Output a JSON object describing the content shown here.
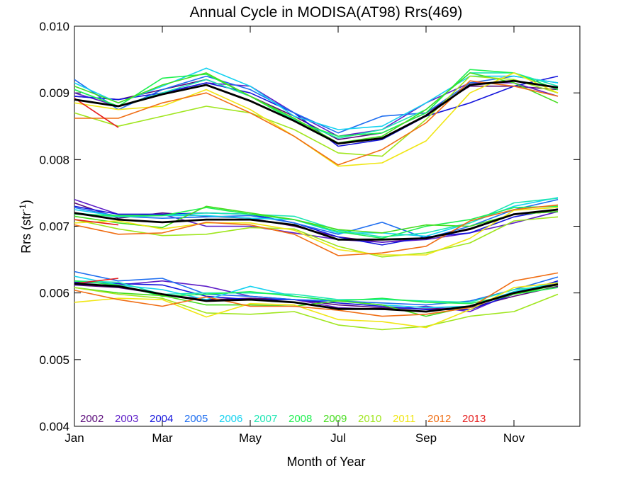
{
  "chart_data": {
    "type": "line",
    "title": "Annual Cycle in MODISA(AT98) Rrs(469)",
    "xlabel": "Month of Year",
    "ylabel": {
      "main": "Rrs (str",
      "sup": "-1",
      "end": ")"
    },
    "ylim": [
      0.004,
      0.01
    ],
    "xlim": [
      1,
      12.5
    ],
    "x_ticks": [
      {
        "x": 1,
        "label": "Jan"
      },
      {
        "x": 3,
        "label": "Mar"
      },
      {
        "x": 5,
        "label": "May"
      },
      {
        "x": 7,
        "label": "Jul"
      },
      {
        "x": 9,
        "label": "Sep"
      },
      {
        "x": 11,
        "label": "Nov"
      }
    ],
    "y_ticks": [
      {
        "y": 0.004,
        "label": "0.004"
      },
      {
        "y": 0.005,
        "label": "0.005"
      },
      {
        "y": 0.006,
        "label": "0.006"
      },
      {
        "y": 0.007,
        "label": "0.007"
      },
      {
        "y": 0.008,
        "label": "0.008"
      },
      {
        "y": 0.009,
        "label": "0.009"
      },
      {
        "y": 0.01,
        "label": "0.010"
      }
    ],
    "legend_position": "bottom-left",
    "x": [
      1,
      2,
      3,
      4,
      5,
      6,
      7,
      8,
      9,
      10,
      11,
      12
    ],
    "series": [
      {
        "name": "2002",
        "color": "#5a0a7a",
        "groups": [
          [
            0.00895,
            0.0089,
            0.00905,
            0.0092,
            0.00895,
            0.00865,
            0.0083,
            0.0084,
            0.0087,
            0.0091,
            0.0091,
            0.00905
          ],
          [
            0.00735,
            0.00712,
            0.0072,
            0.00715,
            0.00712,
            0.007,
            0.00684,
            0.00676,
            0.00682,
            0.00695,
            0.00718,
            0.00722
          ],
          [
            0.00612,
            0.00608,
            0.00598,
            0.0059,
            0.00592,
            0.0059,
            0.00582,
            0.00578,
            0.00576,
            0.00578,
            0.00595,
            0.0061
          ]
        ]
      },
      {
        "name": "2003",
        "color": "#5e1ec8",
        "groups": [
          [
            0.009,
            0.0088,
            0.009,
            0.00915,
            0.0091,
            0.0087,
            0.00835,
            0.00845,
            0.00885,
            0.00915,
            0.00915,
            0.00895
          ],
          [
            0.0074,
            0.00718,
            0.00718,
            0.007,
            0.007,
            0.0069,
            0.0068,
            0.00676,
            0.0068,
            0.0069,
            0.00705,
            0.00722
          ],
          [
            0.00612,
            0.00612,
            0.00618,
            0.0061,
            0.00595,
            0.0059,
            0.00578,
            0.00575,
            0.0058,
            0.00572,
            0.006,
            0.00616
          ]
        ]
      },
      {
        "name": "2004",
        "color": "#1414dc",
        "groups": [
          [
            0.00895,
            0.0089,
            0.009,
            0.00915,
            0.009,
            0.0087,
            0.0082,
            0.0083,
            0.00865,
            0.00885,
            0.0091,
            0.00925
          ],
          [
            0.0073,
            0.00718,
            0.00718,
            0.0072,
            0.00718,
            0.00705,
            0.00684,
            0.00672,
            0.00684,
            0.0069,
            0.00714,
            0.00726
          ],
          [
            0.00616,
            0.00614,
            0.00612,
            0.00595,
            0.0059,
            0.0059,
            0.00585,
            0.0058,
            0.00575,
            0.00575,
            0.00598,
            0.00618
          ]
        ]
      },
      {
        "name": "2005",
        "color": "#1e6ef0",
        "groups": [
          [
            0.0092,
            0.00875,
            0.00905,
            0.00925,
            0.00905,
            0.0087,
            0.0084,
            0.00865,
            0.0087,
            0.00915,
            0.00925,
            0.00915
          ],
          [
            0.00728,
            0.00715,
            0.00712,
            0.00714,
            0.00716,
            0.00705,
            0.00688,
            0.00706,
            0.00682,
            0.007,
            0.00725,
            0.0074
          ],
          [
            0.00632,
            0.00618,
            0.00622,
            0.00598,
            0.00595,
            0.0059,
            0.00588,
            0.00585,
            0.00582,
            0.00588,
            0.00605,
            0.00624
          ]
        ]
      },
      {
        "name": "2006",
        "color": "#14d2f0",
        "groups": [
          [
            0.00915,
            0.00885,
            0.0091,
            0.00937,
            0.0091,
            0.00865,
            0.00845,
            0.0085,
            0.00885,
            0.00925,
            0.00925,
            0.00915
          ],
          [
            0.00725,
            0.00715,
            0.00716,
            0.00716,
            0.00712,
            0.0071,
            0.0069,
            0.0069,
            0.00685,
            0.00705,
            0.0073,
            0.00743
          ],
          [
            0.00625,
            0.00612,
            0.00605,
            0.0059,
            0.0061,
            0.00595,
            0.00588,
            0.00582,
            0.00578,
            0.0058,
            0.00602,
            0.00616
          ]
        ]
      },
      {
        "name": "2007",
        "color": "#1ee6b4",
        "groups": [
          [
            0.00905,
            0.0088,
            0.009,
            0.0092,
            0.00895,
            0.0086,
            0.00832,
            0.00845,
            0.00875,
            0.0093,
            0.0093,
            0.0091
          ],
          [
            0.0072,
            0.00714,
            0.00716,
            0.0072,
            0.00718,
            0.00715,
            0.00694,
            0.00684,
            0.0069,
            0.00705,
            0.00735,
            0.00742
          ],
          [
            0.00618,
            0.00616,
            0.00598,
            0.006,
            0.006,
            0.00598,
            0.0059,
            0.0059,
            0.00588,
            0.00586,
            0.00605,
            0.00612
          ]
        ]
      },
      {
        "name": "2008",
        "color": "#1ef050",
        "groups": [
          [
            0.00905,
            0.0088,
            0.00922,
            0.00928,
            0.00895,
            0.00858,
            0.00835,
            0.0084,
            0.0087,
            0.00935,
            0.0093,
            0.00905
          ],
          [
            0.00718,
            0.00716,
            0.00716,
            0.00728,
            0.00718,
            0.0071,
            0.00692,
            0.00682,
            0.007,
            0.0071,
            0.00728,
            0.0073
          ],
          [
            0.00618,
            0.00612,
            0.00595,
            0.00598,
            0.00602,
            0.00595,
            0.00588,
            0.00592,
            0.00586,
            0.00584,
            0.00598,
            0.00608
          ]
        ]
      },
      {
        "name": "2009",
        "color": "#46dc1e",
        "groups": [
          [
            0.0091,
            0.00885,
            0.00912,
            0.0093,
            0.00895,
            0.00862,
            0.00825,
            0.00835,
            0.00875,
            0.0093,
            0.00915,
            0.00885
          ],
          [
            0.00715,
            0.00705,
            0.00698,
            0.0073,
            0.0072,
            0.0071,
            0.00695,
            0.0069,
            0.00702,
            0.007,
            0.00718,
            0.00722
          ],
          [
            0.00608,
            0.006,
            0.00596,
            0.00582,
            0.00582,
            0.0058,
            0.00588,
            0.00582,
            0.00565,
            0.0058,
            0.00598,
            0.00612
          ]
        ]
      },
      {
        "name": "2010",
        "color": "#a0e61e",
        "groups": [
          [
            0.0087,
            0.0085,
            0.00865,
            0.0088,
            0.0087,
            0.00845,
            0.0081,
            0.00805,
            0.0086,
            0.00925,
            0.0092,
            0.009
          ],
          [
            0.0071,
            0.00696,
            0.00686,
            0.00688,
            0.00698,
            0.00696,
            0.0067,
            0.00654,
            0.0066,
            0.00675,
            0.00708,
            0.00714
          ],
          [
            0.00608,
            0.00598,
            0.00592,
            0.0057,
            0.00568,
            0.00572,
            0.00552,
            0.00545,
            0.0055,
            0.00565,
            0.00572,
            0.00598
          ]
        ]
      },
      {
        "name": "2011",
        "color": "#f0e614",
        "groups": [
          [
            0.00885,
            0.00875,
            0.0088,
            0.00905,
            0.00875,
            0.00835,
            0.0079,
            0.00795,
            0.00828,
            0.009,
            0.0093,
            0.009
          ],
          [
            0.00705,
            0.00708,
            0.00696,
            0.00705,
            0.00705,
            0.00694,
            0.00665,
            0.00657,
            0.00657,
            0.00682,
            0.00724,
            0.00728
          ],
          [
            0.00586,
            0.00592,
            0.0059,
            0.00564,
            0.00584,
            0.00582,
            0.0056,
            0.00557,
            0.00548,
            0.00575,
            0.00608,
            0.00615
          ]
        ]
      },
      {
        "name": "2012",
        "color": "#f06e14",
        "groups": [
          [
            0.00862,
            0.00862,
            0.00885,
            0.009,
            0.0087,
            0.00835,
            0.00792,
            0.00815,
            0.00855,
            0.00918,
            0.0091,
            0.00895
          ],
          [
            0.00702,
            0.00688,
            0.0069,
            0.00706,
            0.00702,
            0.00688,
            0.00656,
            0.0066,
            0.0067,
            0.00708,
            0.00725,
            0.00732
          ],
          [
            0.00604,
            0.0059,
            0.0058,
            0.00594,
            0.0058,
            0.0058,
            0.00574,
            0.00565,
            0.00568,
            0.00578,
            0.00618,
            0.0063
          ]
        ]
      },
      {
        "name": "2013",
        "color": "#e61e1e",
        "groups": [
          [
            0.00892,
            0.00848
          ],
          [
            0.0071,
            0.00702
          ],
          [
            0.00614,
            0.00622
          ]
        ]
      }
    ],
    "mean": {
      "color": "#000000",
      "groups": [
        [
          0.0089,
          0.0088,
          0.00898,
          0.00912,
          0.00888,
          0.00858,
          0.00824,
          0.00832,
          0.00866,
          0.00912,
          0.00918,
          0.00908
        ],
        [
          0.0072,
          0.0071,
          0.00706,
          0.0071,
          0.0071,
          0.00702,
          0.0068,
          0.0068,
          0.00682,
          0.00696,
          0.00718,
          0.00725
        ],
        [
          0.00614,
          0.0061,
          0.00598,
          0.00588,
          0.0059,
          0.00586,
          0.00576,
          0.00576,
          0.00572,
          0.0058,
          0.006,
          0.00613
        ]
      ]
    }
  }
}
